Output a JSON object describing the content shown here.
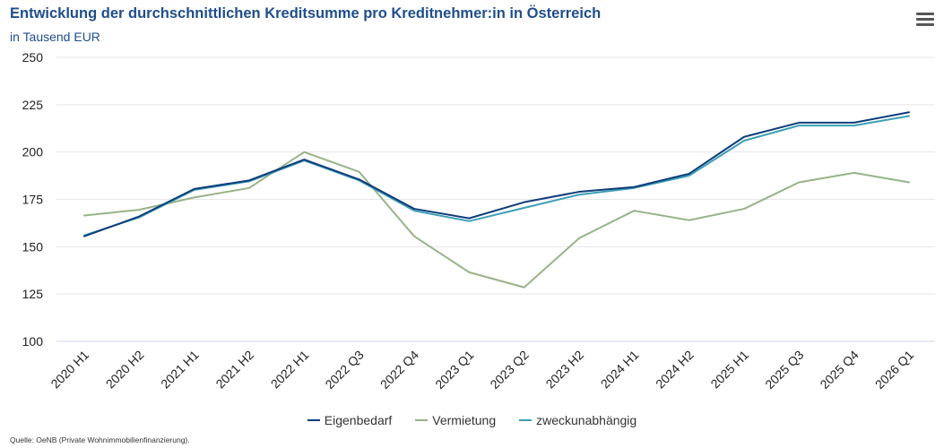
{
  "header": {
    "title": "Entwicklung der durchschnittlichen Kreditsumme pro Kreditnehmer:in in Österreich",
    "subtitle": "in Tausend EUR"
  },
  "menu": {
    "icon": "hamburger-menu-icon"
  },
  "source": "Quelle: OeNB (Private Wohnimmobilienfinanzierung).",
  "chart_data": {
    "type": "line",
    "title": "Entwicklung der durchschnittlichen Kreditsumme pro Kreditnehmer:in in Österreich",
    "subtitle": "in Tausend EUR",
    "xlabel": "",
    "ylabel": "",
    "ylim": [
      100,
      250
    ],
    "yticks": [
      100,
      125,
      150,
      175,
      200,
      225,
      250
    ],
    "grid": true,
    "legend_position": "bottom-center",
    "categories": [
      "2020 H1",
      "2020 H2",
      "2021 H1",
      "2021 H2",
      "2022 H1",
      "2022 Q3",
      "2022 Q4",
      "2023 Q1",
      "2023 Q2",
      "2023 H2",
      "2024 H1",
      "2024 H2",
      "2025 H1",
      "2025 Q3",
      "2025 Q4",
      "2026 Q1"
    ],
    "series": [
      {
        "name": "Eigenbedarf",
        "color": "#0e3d7a",
        "values": [
          155.5,
          166,
          180.5,
          185,
          196,
          185.5,
          170,
          165,
          173.5,
          179,
          181.5,
          188.5,
          208,
          215.5,
          215.5,
          221
        ]
      },
      {
        "name": "Vermietung",
        "color": "#97b388",
        "values": [
          166.5,
          169.5,
          176,
          181,
          200,
          189.5,
          155.5,
          136.5,
          128.5,
          154.5,
          169,
          164,
          170,
          184,
          189,
          184
        ]
      },
      {
        "name": "zweckunabhängig",
        "color": "#3d9fb5",
        "values": [
          156,
          165.5,
          180,
          184.5,
          195.5,
          185,
          169,
          163.5,
          170.5,
          177.5,
          181,
          187.5,
          206,
          214,
          214,
          219
        ]
      }
    ]
  }
}
